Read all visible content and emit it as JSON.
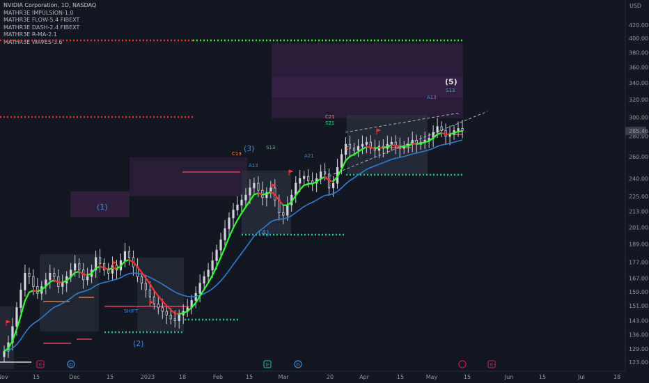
{
  "legend": {
    "title": "NVIDIA Corporation, 1D, NASDAQ",
    "indicators": [
      "MATHR3E IMPULSION-1.0",
      "MATHR3E FLOW-5.4 FIBEXT",
      "MATHR3E DASH-2.4 FIBEXT",
      "MATHR3E R-MA-2.1",
      "MATHR3E WAVES-3.6"
    ]
  },
  "colors": {
    "background": "#131722",
    "candle": "#d1d4dc",
    "ema_fast_up": "#2bff2b",
    "ema_fast_down": "#ff2d2d",
    "ma_slow": "#2f7fd6",
    "resistance": "#ff2d2d",
    "support": "#22cc88",
    "target_zone": "#5a2d6a",
    "wave_label": "#3d8bd9"
  },
  "chart_data": {
    "type": "candlestick",
    "symbol": "NVIDIA Corporation",
    "interval": "1D",
    "exchange": "NASDAQ",
    "currency_label": "USD",
    "scale": "log",
    "ylim": [
      119,
      460
    ],
    "y_ticks": [
      123.0,
      129.0,
      136.0,
      143.0,
      151.0,
      159.0,
      167.0,
      177.0,
      189.0,
      201.0,
      213.0,
      225.0,
      240.0,
      260.0,
      280.0,
      300.0,
      320.0,
      340.0,
      360.0,
      380.0,
      400.0,
      420.0
    ],
    "x_tick_labels": [
      "Nov",
      "15",
      "Dec",
      "15",
      "2023",
      "18",
      "Feb",
      "15",
      "Mar",
      "20",
      "Apr",
      "15",
      "May",
      "15",
      "Jun",
      "15",
      "Jul",
      "18"
    ],
    "last_price": 285.46,
    "ohlc_path": [
      128,
      132,
      140,
      150,
      160,
      170,
      168,
      162,
      158,
      162,
      166,
      170,
      168,
      162,
      164,
      168,
      172,
      176,
      172,
      166,
      168,
      172,
      180,
      176,
      172,
      170,
      175,
      172,
      178,
      184,
      180,
      174,
      168,
      164,
      160,
      156,
      152,
      150,
      148,
      146,
      144,
      143,
      146,
      148,
      150,
      154,
      158,
      164,
      168,
      172,
      178,
      185,
      192,
      200,
      208,
      214,
      218,
      222,
      226,
      232,
      236,
      230,
      224,
      228,
      232,
      222,
      212,
      210,
      218,
      226,
      236,
      240,
      242,
      238,
      236,
      240,
      246,
      244,
      232,
      236,
      250,
      262,
      272,
      268,
      266,
      270,
      272,
      274,
      268,
      266,
      270,
      268,
      272,
      274,
      270,
      268,
      270,
      272,
      276,
      272,
      274,
      276,
      278,
      284,
      290,
      286,
      280,
      282,
      286,
      288,
      286
    ],
    "wave_labels": [
      "(1)",
      "(2)",
      "(3)",
      "(4)",
      "(5)"
    ],
    "signal_labels": [
      "C13",
      "A13",
      "S13",
      "A21",
      "C21",
      "S21",
      "A13",
      "S13",
      "SHIFT",
      "E"
    ],
    "event_markers": [
      "E",
      "D",
      "E",
      "D",
      "E"
    ]
  }
}
